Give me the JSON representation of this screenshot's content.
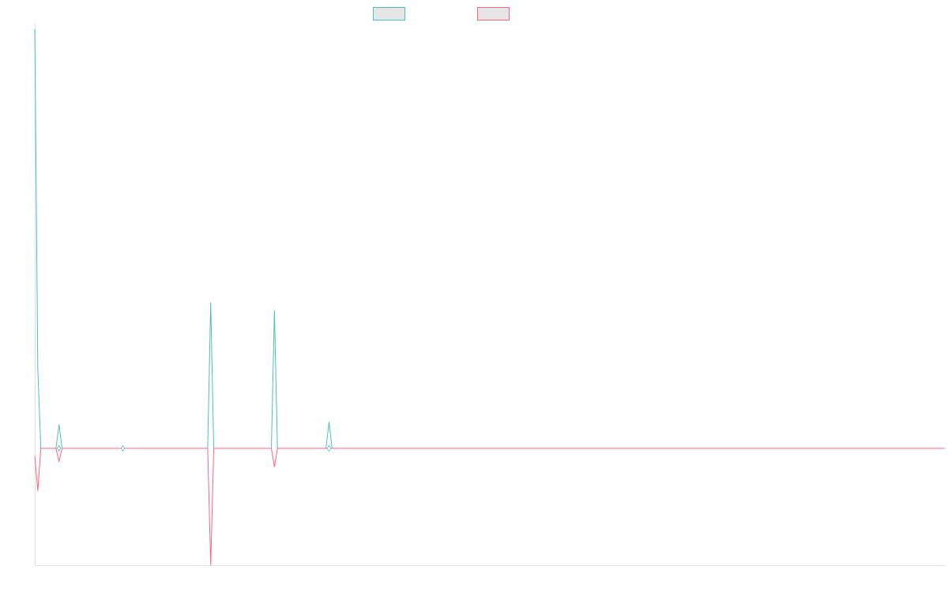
{
  "chart_data": {
    "type": "line",
    "x_count": 301,
    "legend": [
      {
        "series": 0,
        "label": "",
        "color": "#4bc0c0"
      },
      {
        "series": 1,
        "label": "",
        "color": "#ff6384"
      }
    ],
    "ylim": [
      -2.2,
      8.0
    ],
    "series": [
      {
        "color": "#4bc0c0",
        "points": [
          [
            0,
            7.9
          ],
          [
            1,
            1.5
          ],
          [
            2,
            0
          ],
          [
            7,
            0
          ],
          [
            8,
            0.45
          ],
          [
            9,
            0
          ],
          [
            28,
            0
          ],
          [
            29,
            0
          ],
          [
            30,
            0
          ],
          [
            57,
            0
          ],
          [
            58,
            2.75
          ],
          [
            59,
            0
          ],
          [
            78,
            0
          ],
          [
            79,
            2.6
          ],
          [
            80,
            0
          ],
          [
            96,
            0
          ],
          [
            97,
            0.5
          ],
          [
            98,
            0
          ],
          [
            300,
            0
          ]
        ]
      },
      {
        "color": "#ff6384",
        "points": [
          [
            0,
            -0.15
          ],
          [
            1,
            -0.8
          ],
          [
            2,
            0
          ],
          [
            7,
            0
          ],
          [
            8,
            -0.25
          ],
          [
            9,
            0
          ],
          [
            28,
            0
          ],
          [
            29,
            0
          ],
          [
            30,
            0
          ],
          [
            57,
            0
          ],
          [
            58,
            -2.2
          ],
          [
            59,
            0
          ],
          [
            78,
            0
          ],
          [
            79,
            -0.35
          ],
          [
            80,
            0
          ],
          [
            96,
            0
          ],
          [
            97,
            0
          ],
          [
            98,
            0
          ],
          [
            300,
            0
          ]
        ]
      }
    ],
    "markers": [
      {
        "x": 8,
        "y": 0
      },
      {
        "x": 29,
        "y": 0
      },
      {
        "x": 97,
        "y": 0
      }
    ],
    "grid": false
  }
}
